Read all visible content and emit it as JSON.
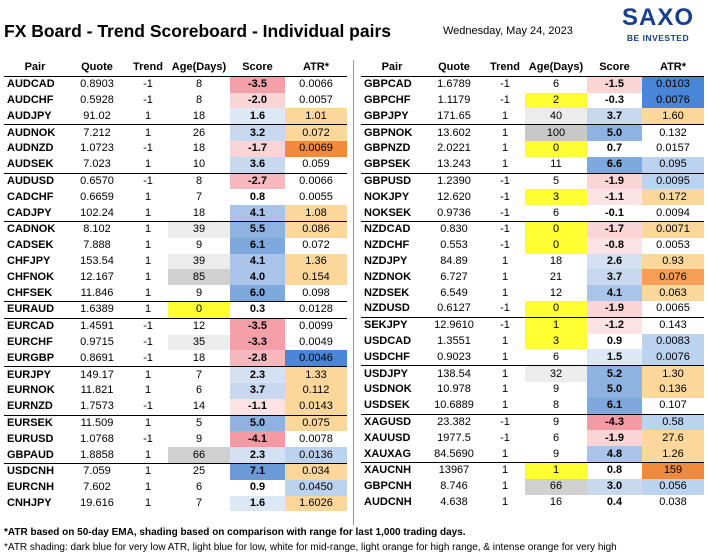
{
  "header": {
    "title": "FX Board - Trend Scoreboard - Individual pairs",
    "date": "Wednesday, May 24, 2023",
    "logo_text": "SAXO",
    "logo_tagline": "BE INVESTED"
  },
  "columns": [
    "Pair",
    "Quote",
    "Trend",
    "Age(Days)",
    "Score",
    "ATR*"
  ],
  "colors": {
    "score_red_strong": "#f4a0a8",
    "score_red_light": "#f9d5d8",
    "score_blue_strong": "#7fa8dc",
    "score_blue_light": "#c7d8ef",
    "atr_dark_blue": "#4a86d8",
    "atr_light_blue": "#bcd3f0",
    "atr_light_orange": "#fcd79b",
    "atr_orange": "#f5a056",
    "atr_intense_orange": "#f08a3c",
    "age_yellow": "#ffff33",
    "age_grey": "#d0d0d0",
    "logo_blue": "#173f8e"
  },
  "chart_data": {
    "type": "table",
    "left": [
      {
        "pair": "AUDCAD",
        "quote": "0.8903",
        "trend": "-1",
        "age": "8",
        "score": "-3.5",
        "atr": "0.0066",
        "score_bg": "#f4a0a8",
        "atr_bg": "#ffffff",
        "age_bg": "#ffffff"
      },
      {
        "pair": "AUDCHF",
        "quote": "0.5928",
        "trend": "-1",
        "age": "8",
        "score": "-2.0",
        "atr": "0.0057",
        "score_bg": "#f9d5d8",
        "atr_bg": "#ffffff",
        "age_bg": "#ffffff"
      },
      {
        "pair": "AUDJPY",
        "quote": "91.02",
        "trend": "1",
        "age": "18",
        "score": "1.6",
        "atr": "1.01",
        "score_bg": "#dde8f6",
        "atr_bg": "#fcd79b",
        "age_bg": "#ffffff"
      },
      {
        "pair": "AUDNOK",
        "quote": "7.212",
        "trend": "1",
        "age": "26",
        "score": "3.2",
        "atr": "0.072",
        "score_bg": "#c7d8ef",
        "atr_bg": "#fcd79b",
        "age_bg": "#ffffff"
      },
      {
        "pair": "AUDNZD",
        "quote": "1.0723",
        "trend": "-1",
        "age": "18",
        "score": "-1.7",
        "atr": "0.0069",
        "score_bg": "#f9d5d8",
        "atr_bg": "#f08a3c",
        "age_bg": "#ffffff"
      },
      {
        "pair": "AUDSEK",
        "quote": "7.023",
        "trend": "1",
        "age": "10",
        "score": "3.6",
        "atr": "0.059",
        "score_bg": "#c7d8ef",
        "atr_bg": "#ffffff",
        "age_bg": "#ffffff"
      },
      {
        "pair": "AUDUSD",
        "quote": "0.6570",
        "trend": "-1",
        "age": "8",
        "score": "-2.7",
        "atr": "0.0066",
        "score_bg": "#f6b8be",
        "atr_bg": "#ffffff",
        "age_bg": "#ffffff"
      },
      {
        "pair": "CADCHF",
        "quote": "0.6659",
        "trend": "1",
        "age": "7",
        "score": "0.8",
        "atr": "0.0055",
        "score_bg": "#ffffff",
        "atr_bg": "#ffffff",
        "age_bg": "#ffffff"
      },
      {
        "pair": "CADJPY",
        "quote": "102.24",
        "trend": "1",
        "age": "18",
        "score": "4.1",
        "atr": "1.08",
        "score_bg": "#a9c4e8",
        "atr_bg": "#fcd79b",
        "age_bg": "#ffffff"
      },
      {
        "pair": "CADNOK",
        "quote": "8.102",
        "trend": "1",
        "age": "39",
        "score": "5.5",
        "atr": "0.086",
        "score_bg": "#8fb3e0",
        "atr_bg": "#fcd79b",
        "age_bg": "#ececec"
      },
      {
        "pair": "CADSEK",
        "quote": "7.888",
        "trend": "1",
        "age": "9",
        "score": "6.1",
        "atr": "0.072",
        "score_bg": "#7fa8dc",
        "atr_bg": "#ffffff",
        "age_bg": "#ffffff"
      },
      {
        "pair": "CHFJPY",
        "quote": "153.54",
        "trend": "1",
        "age": "39",
        "score": "4.1",
        "atr": "1.36",
        "score_bg": "#a9c4e8",
        "atr_bg": "#fcd79b",
        "age_bg": "#ececec"
      },
      {
        "pair": "CHFNOK",
        "quote": "12.167",
        "trend": "1",
        "age": "85",
        "score": "4.0",
        "atr": "0.154",
        "score_bg": "#a9c4e8",
        "atr_bg": "#fcd79b",
        "age_bg": "#d0d0d0"
      },
      {
        "pair": "CHFSEK",
        "quote": "11.846",
        "trend": "1",
        "age": "9",
        "score": "6.0",
        "atr": "0.098",
        "score_bg": "#7fa8dc",
        "atr_bg": "#ffffff",
        "age_bg": "#ffffff"
      },
      {
        "pair": "EURAUD",
        "quote": "1.6389",
        "trend": "1",
        "age": "0",
        "score": "0.3",
        "atr": "0.0128",
        "score_bg": "#ffffff",
        "atr_bg": "#ffffff",
        "age_bg": "#ffff33"
      },
      {
        "pair": "EURCAD",
        "quote": "1.4591",
        "trend": "-1",
        "age": "12",
        "score": "-3.5",
        "atr": "0.0099",
        "score_bg": "#f4a0a8",
        "atr_bg": "#ffffff",
        "age_bg": "#ffffff"
      },
      {
        "pair": "EURCHF",
        "quote": "0.9715",
        "trend": "-1",
        "age": "35",
        "score": "-3.3",
        "atr": "0.0049",
        "score_bg": "#f4a0a8",
        "atr_bg": "#ffffff",
        "age_bg": "#ececec"
      },
      {
        "pair": "EURGBP",
        "quote": "0.8691",
        "trend": "-1",
        "age": "18",
        "score": "-2.8",
        "atr": "0.0046",
        "score_bg": "#f6b8be",
        "atr_bg": "#4a86d8",
        "age_bg": "#ffffff"
      },
      {
        "pair": "EURJPY",
        "quote": "149.17",
        "trend": "1",
        "age": "7",
        "score": "2.3",
        "atr": "1.33",
        "score_bg": "#d3e1f3",
        "atr_bg": "#fcd79b",
        "age_bg": "#ffffff"
      },
      {
        "pair": "EURNOK",
        "quote": "11.821",
        "trend": "1",
        "age": "6",
        "score": "3.7",
        "atr": "0.112",
        "score_bg": "#c7d8ef",
        "atr_bg": "#fcd79b",
        "age_bg": "#ffffff"
      },
      {
        "pair": "EURNZD",
        "quote": "1.7573",
        "trend": "-1",
        "age": "14",
        "score": "-1.1",
        "atr": "0.0143",
        "score_bg": "#fbe3e5",
        "atr_bg": "#fcd79b",
        "age_bg": "#ffffff"
      },
      {
        "pair": "EURSEK",
        "quote": "11.509",
        "trend": "1",
        "age": "5",
        "score": "5.0",
        "atr": "0.075",
        "score_bg": "#8fb3e0",
        "atr_bg": "#fcd79b",
        "age_bg": "#ffffff"
      },
      {
        "pair": "EURUSD",
        "quote": "1.0768",
        "trend": "-1",
        "age": "9",
        "score": "-4.1",
        "atr": "0.0078",
        "score_bg": "#f39aa3",
        "atr_bg": "#ffffff",
        "age_bg": "#ffffff"
      },
      {
        "pair": "GBPAUD",
        "quote": "1.8858",
        "trend": "1",
        "age": "66",
        "score": "2.3",
        "atr": "0.0136",
        "score_bg": "#d3e1f3",
        "atr_bg": "#bcd3f0",
        "age_bg": "#d0d0d0"
      },
      {
        "pair": "USDCNH",
        "quote": "7.059",
        "trend": "1",
        "age": "25",
        "score": "7.1",
        "atr": "0.034",
        "score_bg": "#6b9ad6",
        "atr_bg": "#fcd79b",
        "age_bg": "#ffffff"
      },
      {
        "pair": "EURCNH",
        "quote": "7.602",
        "trend": "1",
        "age": "6",
        "score": "0.9",
        "atr": "0.0450",
        "score_bg": "#ffffff",
        "atr_bg": "#bcd3f0",
        "age_bg": "#ffffff"
      },
      {
        "pair": "CNHJPY",
        "quote": "19.616",
        "trend": "1",
        "age": "7",
        "score": "1.6",
        "atr": "1.6026",
        "score_bg": "#dde8f6",
        "atr_bg": "#fcd79b",
        "age_bg": "#ffffff"
      }
    ],
    "right": [
      {
        "pair": "GBPCAD",
        "quote": "1.6789",
        "trend": "-1",
        "age": "6",
        "score": "-1.5",
        "atr": "0.0103",
        "score_bg": "#f9d5d8",
        "atr_bg": "#4a86d8",
        "age_bg": "#ffffff"
      },
      {
        "pair": "GBPCHF",
        "quote": "1.1179",
        "trend": "-1",
        "age": "2",
        "score": "-0.3",
        "atr": "0.0076",
        "score_bg": "#ffffff",
        "atr_bg": "#4a86d8",
        "age_bg": "#ffff33"
      },
      {
        "pair": "GBPJPY",
        "quote": "171.65",
        "trend": "1",
        "age": "40",
        "score": "3.7",
        "atr": "1.60",
        "score_bg": "#c7d8ef",
        "atr_bg": "#fcd79b",
        "age_bg": "#ececec"
      },
      {
        "pair": "GBPNOK",
        "quote": "13.602",
        "trend": "1",
        "age": "100",
        "score": "5.0",
        "atr": "0.132",
        "score_bg": "#8fb3e0",
        "atr_bg": "#ffffff",
        "age_bg": "#c8c8c8"
      },
      {
        "pair": "GBPNZD",
        "quote": "2.0221",
        "trend": "1",
        "age": "0",
        "score": "0.7",
        "atr": "0.0157",
        "score_bg": "#ffffff",
        "atr_bg": "#ffffff",
        "age_bg": "#ffff33"
      },
      {
        "pair": "GBPSEK",
        "quote": "13.243",
        "trend": "1",
        "age": "11",
        "score": "6.6",
        "atr": "0.095",
        "score_bg": "#7fa8dc",
        "atr_bg": "#bcd3f0",
        "age_bg": "#ffffff"
      },
      {
        "pair": "GBPUSD",
        "quote": "1.2390",
        "trend": "-1",
        "age": "5",
        "score": "-1.9",
        "atr": "0.0095",
        "score_bg": "#f9d5d8",
        "atr_bg": "#bcd3f0",
        "age_bg": "#ffffff"
      },
      {
        "pair": "NOKJPY",
        "quote": "12.620",
        "trend": "-1",
        "age": "3",
        "score": "-1.1",
        "atr": "0.172",
        "score_bg": "#fbe3e5",
        "atr_bg": "#fcd79b",
        "age_bg": "#ffff33"
      },
      {
        "pair": "NOKSEK",
        "quote": "0.9736",
        "trend": "-1",
        "age": "6",
        "score": "-0.1",
        "atr": "0.0094",
        "score_bg": "#ffffff",
        "atr_bg": "#ffffff",
        "age_bg": "#ffffff"
      },
      {
        "pair": "NZDCAD",
        "quote": "0.830",
        "trend": "-1",
        "age": "0",
        "score": "-1.7",
        "atr": "0.0071",
        "score_bg": "#f9d5d8",
        "atr_bg": "#fcd79b",
        "age_bg": "#ffff33"
      },
      {
        "pair": "NZDCHF",
        "quote": "0.553",
        "trend": "-1",
        "age": "0",
        "score": "-0.8",
        "atr": "0.0053",
        "score_bg": "#fbe3e5",
        "atr_bg": "#ffffff",
        "age_bg": "#ffff33"
      },
      {
        "pair": "NZDJPY",
        "quote": "84.89",
        "trend": "1",
        "age": "18",
        "score": "2.6",
        "atr": "0.93",
        "score_bg": "#d3e1f3",
        "atr_bg": "#fcd79b",
        "age_bg": "#ffffff"
      },
      {
        "pair": "NZDNOK",
        "quote": "6.727",
        "trend": "1",
        "age": "21",
        "score": "3.7",
        "atr": "0.076",
        "score_bg": "#c7d8ef",
        "atr_bg": "#f5a056",
        "age_bg": "#ffffff"
      },
      {
        "pair": "NZDSEK",
        "quote": "6.549",
        "trend": "1",
        "age": "12",
        "score": "4.1",
        "atr": "0.063",
        "score_bg": "#a9c4e8",
        "atr_bg": "#fcd79b",
        "age_bg": "#ffffff"
      },
      {
        "pair": "NZDUSD",
        "quote": "0.6127",
        "trend": "-1",
        "age": "0",
        "score": "-1.9",
        "atr": "0.0065",
        "score_bg": "#f9d5d8",
        "atr_bg": "#ffffff",
        "age_bg": "#ffff33"
      },
      {
        "pair": "SEKJPY",
        "quote": "12.9610",
        "trend": "-1",
        "age": "1",
        "score": "-1.2",
        "atr": "0.143",
        "score_bg": "#fbe3e5",
        "atr_bg": "#ffffff",
        "age_bg": "#ffff33"
      },
      {
        "pair": "USDCAD",
        "quote": "1.3551",
        "trend": "1",
        "age": "3",
        "score": "0.9",
        "atr": "0.0083",
        "score_bg": "#ffffff",
        "atr_bg": "#bcd3f0",
        "age_bg": "#ffff33"
      },
      {
        "pair": "USDCHF",
        "quote": "0.9023",
        "trend": "1",
        "age": "6",
        "score": "1.5",
        "atr": "0.0076",
        "score_bg": "#dde8f6",
        "atr_bg": "#bcd3f0",
        "age_bg": "#ffffff"
      },
      {
        "pair": "USDJPY",
        "quote": "138.54",
        "trend": "1",
        "age": "32",
        "score": "5.2",
        "atr": "1.30",
        "score_bg": "#8fb3e0",
        "atr_bg": "#fcd79b",
        "age_bg": "#ececec"
      },
      {
        "pair": "USDNOK",
        "quote": "10.978",
        "trend": "1",
        "age": "9",
        "score": "5.0",
        "atr": "0.136",
        "score_bg": "#8fb3e0",
        "atr_bg": "#fcd79b",
        "age_bg": "#ffffff"
      },
      {
        "pair": "USDSEK",
        "quote": "10.6889",
        "trend": "1",
        "age": "8",
        "score": "6.1",
        "atr": "0.107",
        "score_bg": "#7fa8dc",
        "atr_bg": "#ffffff",
        "age_bg": "#ffffff"
      },
      {
        "pair": "XAGUSD",
        "quote": "23.382",
        "trend": "-1",
        "age": "9",
        "score": "-4.3",
        "atr": "0.58",
        "score_bg": "#f39aa3",
        "atr_bg": "#bcd3f0",
        "age_bg": "#ffffff"
      },
      {
        "pair": "XAUUSD",
        "quote": "1977.5",
        "trend": "-1",
        "age": "6",
        "score": "-1.9",
        "atr": "27.6",
        "score_bg": "#f9d5d8",
        "atr_bg": "#fcd79b",
        "age_bg": "#ffffff"
      },
      {
        "pair": "XAUXAG",
        "quote": "84.5690",
        "trend": "1",
        "age": "9",
        "score": "4.8",
        "atr": "1.26",
        "score_bg": "#a9c4e8",
        "atr_bg": "#fcd79b",
        "age_bg": "#ffffff"
      },
      {
        "pair": "XAUCNH",
        "quote": "13967",
        "trend": "1",
        "age": "1",
        "score": "0.8",
        "atr": "159",
        "score_bg": "#ffffff",
        "atr_bg": "#f08a3c",
        "age_bg": "#ffff33"
      },
      {
        "pair": "GBPCNH",
        "quote": "8.746",
        "trend": "1",
        "age": "66",
        "score": "3.0",
        "atr": "0.056",
        "score_bg": "#c7d8ef",
        "atr_bg": "#bcd3f0",
        "age_bg": "#d0d0d0"
      },
      {
        "pair": "AUDCNH",
        "quote": "4.638",
        "trend": "1",
        "age": "16",
        "score": "0.4",
        "atr": "0.038",
        "score_bg": "#ffffff",
        "atr_bg": "#ffffff",
        "age_bg": "#ffffff"
      }
    ],
    "left_separators_after": [
      2,
      5,
      8,
      13,
      14,
      17,
      20,
      23
    ],
    "right_separators_after": [
      2,
      5,
      8,
      14,
      17,
      20,
      23
    ]
  },
  "footnotes": {
    "line1": "*ATR based on 50-day EMA, shading based on comparison with range for last 1,000 trading days.",
    "line2": "*ATR shading: dark blue for very low ATR, light blue for low, white for mid-range, light orange for high range, & intense orange for very high"
  }
}
